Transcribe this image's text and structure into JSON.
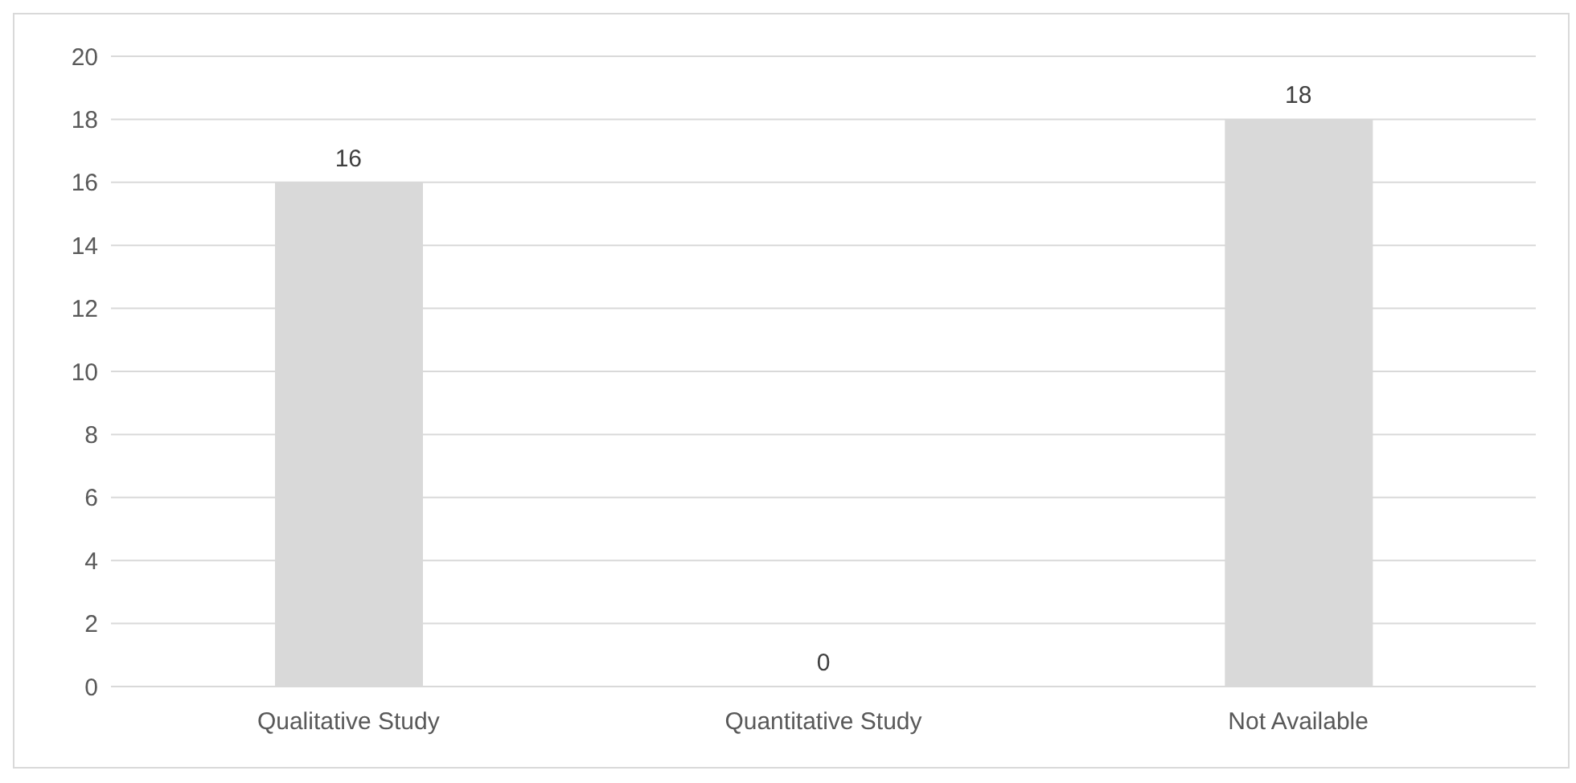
{
  "chart_data": {
    "type": "bar",
    "categories": [
      "Qualitative Study",
      "Quantitative Study",
      "Not Available"
    ],
    "values": [
      16,
      0,
      18
    ],
    "color": "#d9d9d9",
    "ylim": [
      0,
      20
    ],
    "yticks": [
      0,
      2,
      4,
      6,
      8,
      10,
      12,
      14,
      16,
      18,
      20
    ],
    "grid": "y",
    "data_labels": true,
    "legend": false
  }
}
